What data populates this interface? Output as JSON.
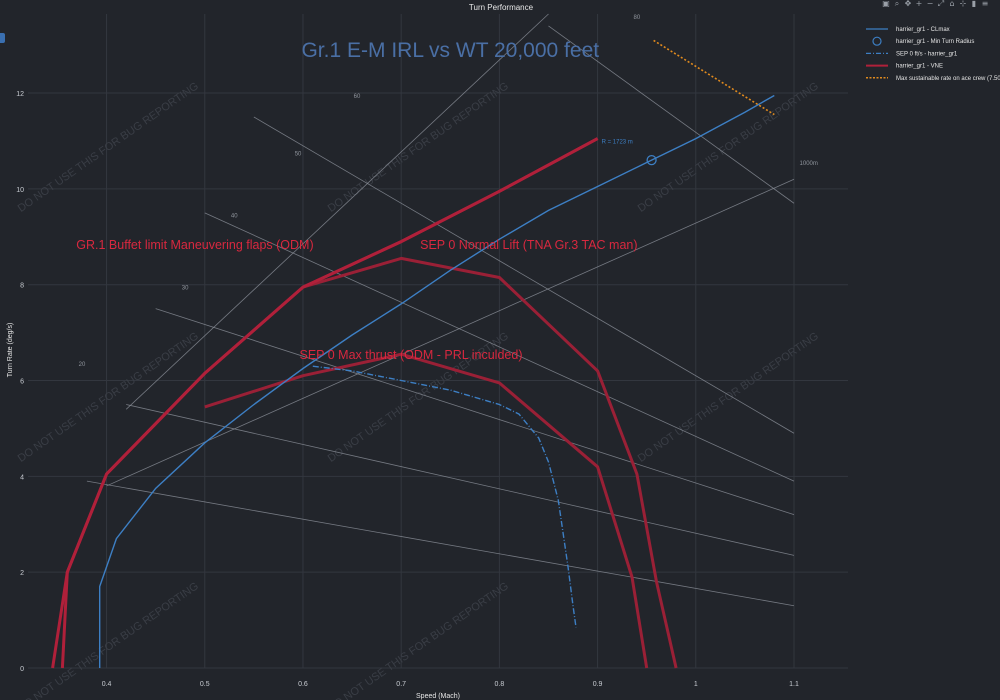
{
  "modebar": {
    "icons": [
      {
        "name": "camera-icon",
        "glyph": "▣"
      },
      {
        "name": "zoom-icon",
        "glyph": "⌕"
      },
      {
        "name": "pan-icon",
        "glyph": "✥"
      },
      {
        "name": "zoom-in-icon",
        "glyph": "+"
      },
      {
        "name": "zoom-out-icon",
        "glyph": "−"
      },
      {
        "name": "autoscale-icon",
        "glyph": "⤢"
      },
      {
        "name": "reset-axes-icon",
        "glyph": "⌂"
      },
      {
        "name": "spike-lines-icon",
        "glyph": "⊹"
      },
      {
        "name": "hover-closest-icon",
        "glyph": "▮"
      },
      {
        "name": "hover-compare-icon",
        "glyph": "≡"
      }
    ]
  },
  "chart_data": {
    "type": "line",
    "title": "Turn Performance",
    "xlabel": "Speed (Mach)",
    "ylabel": "Turn Rate (deg/s)",
    "xlim": [
      0.32,
      1.155
    ],
    "ylim": [
      0,
      13.65
    ],
    "x_ticks": [
      0.4,
      0.5,
      0.6,
      0.7,
      0.8,
      0.9,
      1.0,
      1.1
    ],
    "x_tick_labels": [
      "0.4",
      "0.5",
      "0.6",
      "0.7",
      "0.8",
      "0.9",
      "1",
      "1.1"
    ],
    "y_ticks": [
      0,
      2,
      4,
      6,
      8,
      10,
      12
    ],
    "y_tick_labels": [
      "0",
      "2",
      "4",
      "6",
      "8",
      "10",
      "12"
    ],
    "grid": true,
    "legend_position": "right",
    "colors": {
      "background": "#22252b",
      "grid": "#33373f",
      "clmax": "#3d7fc4",
      "vne": "#b0203a",
      "max_rate": "#e08a1e",
      "guide": "#8a8f98",
      "annotation_red": "#d8283f",
      "annotation_blue": "#4a6fa5"
    },
    "series": [
      {
        "name": "harrier_gr1 - CLmax",
        "kind": "line",
        "color": "#3d7fc4",
        "x": [
          0.393,
          0.393,
          0.41,
          0.45,
          0.5,
          0.55,
          0.6,
          0.65,
          0.7,
          0.75,
          0.8,
          0.85,
          0.9,
          0.95,
          1.0,
          1.05,
          1.08
        ],
        "y": [
          0,
          1.7,
          2.7,
          3.75,
          4.7,
          5.5,
          6.25,
          6.95,
          7.6,
          8.3,
          8.95,
          9.55,
          10.05,
          10.55,
          11.05,
          11.6,
          11.95
        ]
      },
      {
        "name": "harrier_gr1 - Min Turn Radius",
        "kind": "marker",
        "color": "#3d7fc4",
        "x": [
          0.955
        ],
        "y": [
          10.6
        ]
      },
      {
        "name": "SEP 0 ft/s - harrier_gr1",
        "kind": "dashdot",
        "color": "#3d7fc4",
        "x": [
          0.61,
          0.65,
          0.7,
          0.75,
          0.8,
          0.82,
          0.84,
          0.85,
          0.86,
          0.865,
          0.87,
          0.875,
          0.878
        ],
        "y": [
          6.3,
          6.2,
          6.0,
          5.8,
          5.5,
          5.3,
          4.8,
          4.3,
          3.5,
          2.8,
          2.1,
          1.3,
          0.85
        ]
      },
      {
        "name": "harrier_gr1 - VNE",
        "kind": "line",
        "color": "#b0203a",
        "x": [
          0.355,
          0.36,
          0.4,
          0.5,
          0.6,
          0.7,
          0.8,
          0.9
        ],
        "y": [
          0,
          2.0,
          4.05,
          6.15,
          7.95,
          8.9,
          9.95,
          11.05
        ]
      },
      {
        "name": "Max sustainable rate on ace crew (7.50)",
        "kind": "dotted",
        "color": "#e08a1e",
        "x": [
          0.957,
          1.08
        ],
        "y": [
          13.1,
          11.55
        ]
      }
    ],
    "overlays": [
      {
        "label": "GR.1 Buffet limit Maneuvering flaps (ODM)",
        "color": "#b0203a",
        "x": [
          0.345,
          0.36,
          0.4,
          0.5,
          0.6,
          0.7,
          0.8,
          0.9
        ],
        "y": [
          0,
          2.0,
          4.05,
          6.15,
          7.95,
          8.9,
          9.95,
          11.05
        ]
      },
      {
        "label": "SEP 0 Normal Lift (TNA Gr.3 TAC man)",
        "color": "#9a2036",
        "x": [
          0.6,
          0.7,
          0.8,
          0.9,
          0.94,
          0.96,
          0.98
        ],
        "y": [
          7.95,
          8.55,
          8.15,
          6.2,
          4.05,
          1.8,
          0
        ]
      },
      {
        "label": "SEP 0 Max thrust (ODM - PRL inculded)",
        "color": "#9a2036",
        "x": [
          0.5,
          0.6,
          0.7,
          0.8,
          0.9,
          0.935,
          0.95
        ],
        "y": [
          5.45,
          6.1,
          6.55,
          5.95,
          4.2,
          1.9,
          0
        ]
      }
    ],
    "annotations": [
      {
        "text": "Gr.1 E-M IRL vs WT 20,000 feet",
        "color": "#4a6fa5",
        "size": "large",
        "x": 0.75,
        "y": 12.75
      },
      {
        "text": "GR.1 Buffet limit Maneuvering flaps (ODM)",
        "color": "#d8283f",
        "size": "medium",
        "x": 0.49,
        "y": 8.75
      },
      {
        "text": "SEP 0 Normal Lift (TNA Gr.3 TAC man)",
        "color": "#d8283f",
        "size": "medium",
        "x": 0.83,
        "y": 8.75
      },
      {
        "text": "SEP 0 Max thrust (ODM - PRL inculded)",
        "color": "#d8283f",
        "size": "medium",
        "x": 0.71,
        "y": 6.45
      },
      {
        "text": "R = 1723 m",
        "color": "#3d7fc4",
        "size": "small",
        "x": 0.92,
        "y": 10.95
      }
    ],
    "guide_lines": {
      "load_factor": [
        {
          "label": "20",
          "x1": 0.38,
          "y1": 3.9,
          "x2": 1.1,
          "y2": 1.3,
          "lx": 0.375,
          "ly": 6.3
        },
        {
          "label": "30",
          "x1": 0.42,
          "y1": 5.5,
          "x2": 1.1,
          "y2": 2.35,
          "lx": 0.48,
          "ly": 7.9
        },
        {
          "label": "40",
          "x1": 0.45,
          "y1": 7.5,
          "x2": 1.1,
          "y2": 3.2,
          "lx": 0.53,
          "ly": 9.4
        },
        {
          "label": "50",
          "x1": 0.5,
          "y1": 9.5,
          "x2": 1.1,
          "y2": 3.9,
          "lx": 0.595,
          "ly": 10.7
        },
        {
          "label": "60",
          "x1": 0.55,
          "y1": 11.5,
          "x2": 1.1,
          "y2": 4.9,
          "lx": 0.655,
          "ly": 11.9
        }
      ],
      "g_lines": [
        {
          "label": "80",
          "x1": 0.85,
          "y1": 13.4,
          "x2": 1.1,
          "y2": 9.7,
          "lx": 0.94,
          "ly": 13.55
        }
      ],
      "radius": [
        {
          "label": "",
          "x1": 0.42,
          "y1": 5.4,
          "x2": 0.85,
          "y2": 13.65
        },
        {
          "label": "1000m",
          "x1": 0.4,
          "y1": 3.8,
          "x2": 1.1,
          "y2": 10.2,
          "lx": 1.115,
          "ly": 10.5
        }
      ]
    },
    "watermark": "DO NOT USE THIS FOR BUG REPORTING",
    "legend": [
      {
        "label": "harrier_gr1 - CLmax",
        "style": "line",
        "color": "#3d7fc4"
      },
      {
        "label": "harrier_gr1 - Min Turn Radius",
        "style": "circle",
        "color": "#3d7fc4"
      },
      {
        "label": "SEP 0 ft/s - harrier_gr1",
        "style": "dashdot",
        "color": "#3d7fc4"
      },
      {
        "label": "harrier_gr1 - VNE",
        "style": "line",
        "color": "#b0203a"
      },
      {
        "label": "Max sustainable rate on ace crew (7.50)",
        "style": "dotted",
        "color": "#e08a1e"
      }
    ]
  }
}
